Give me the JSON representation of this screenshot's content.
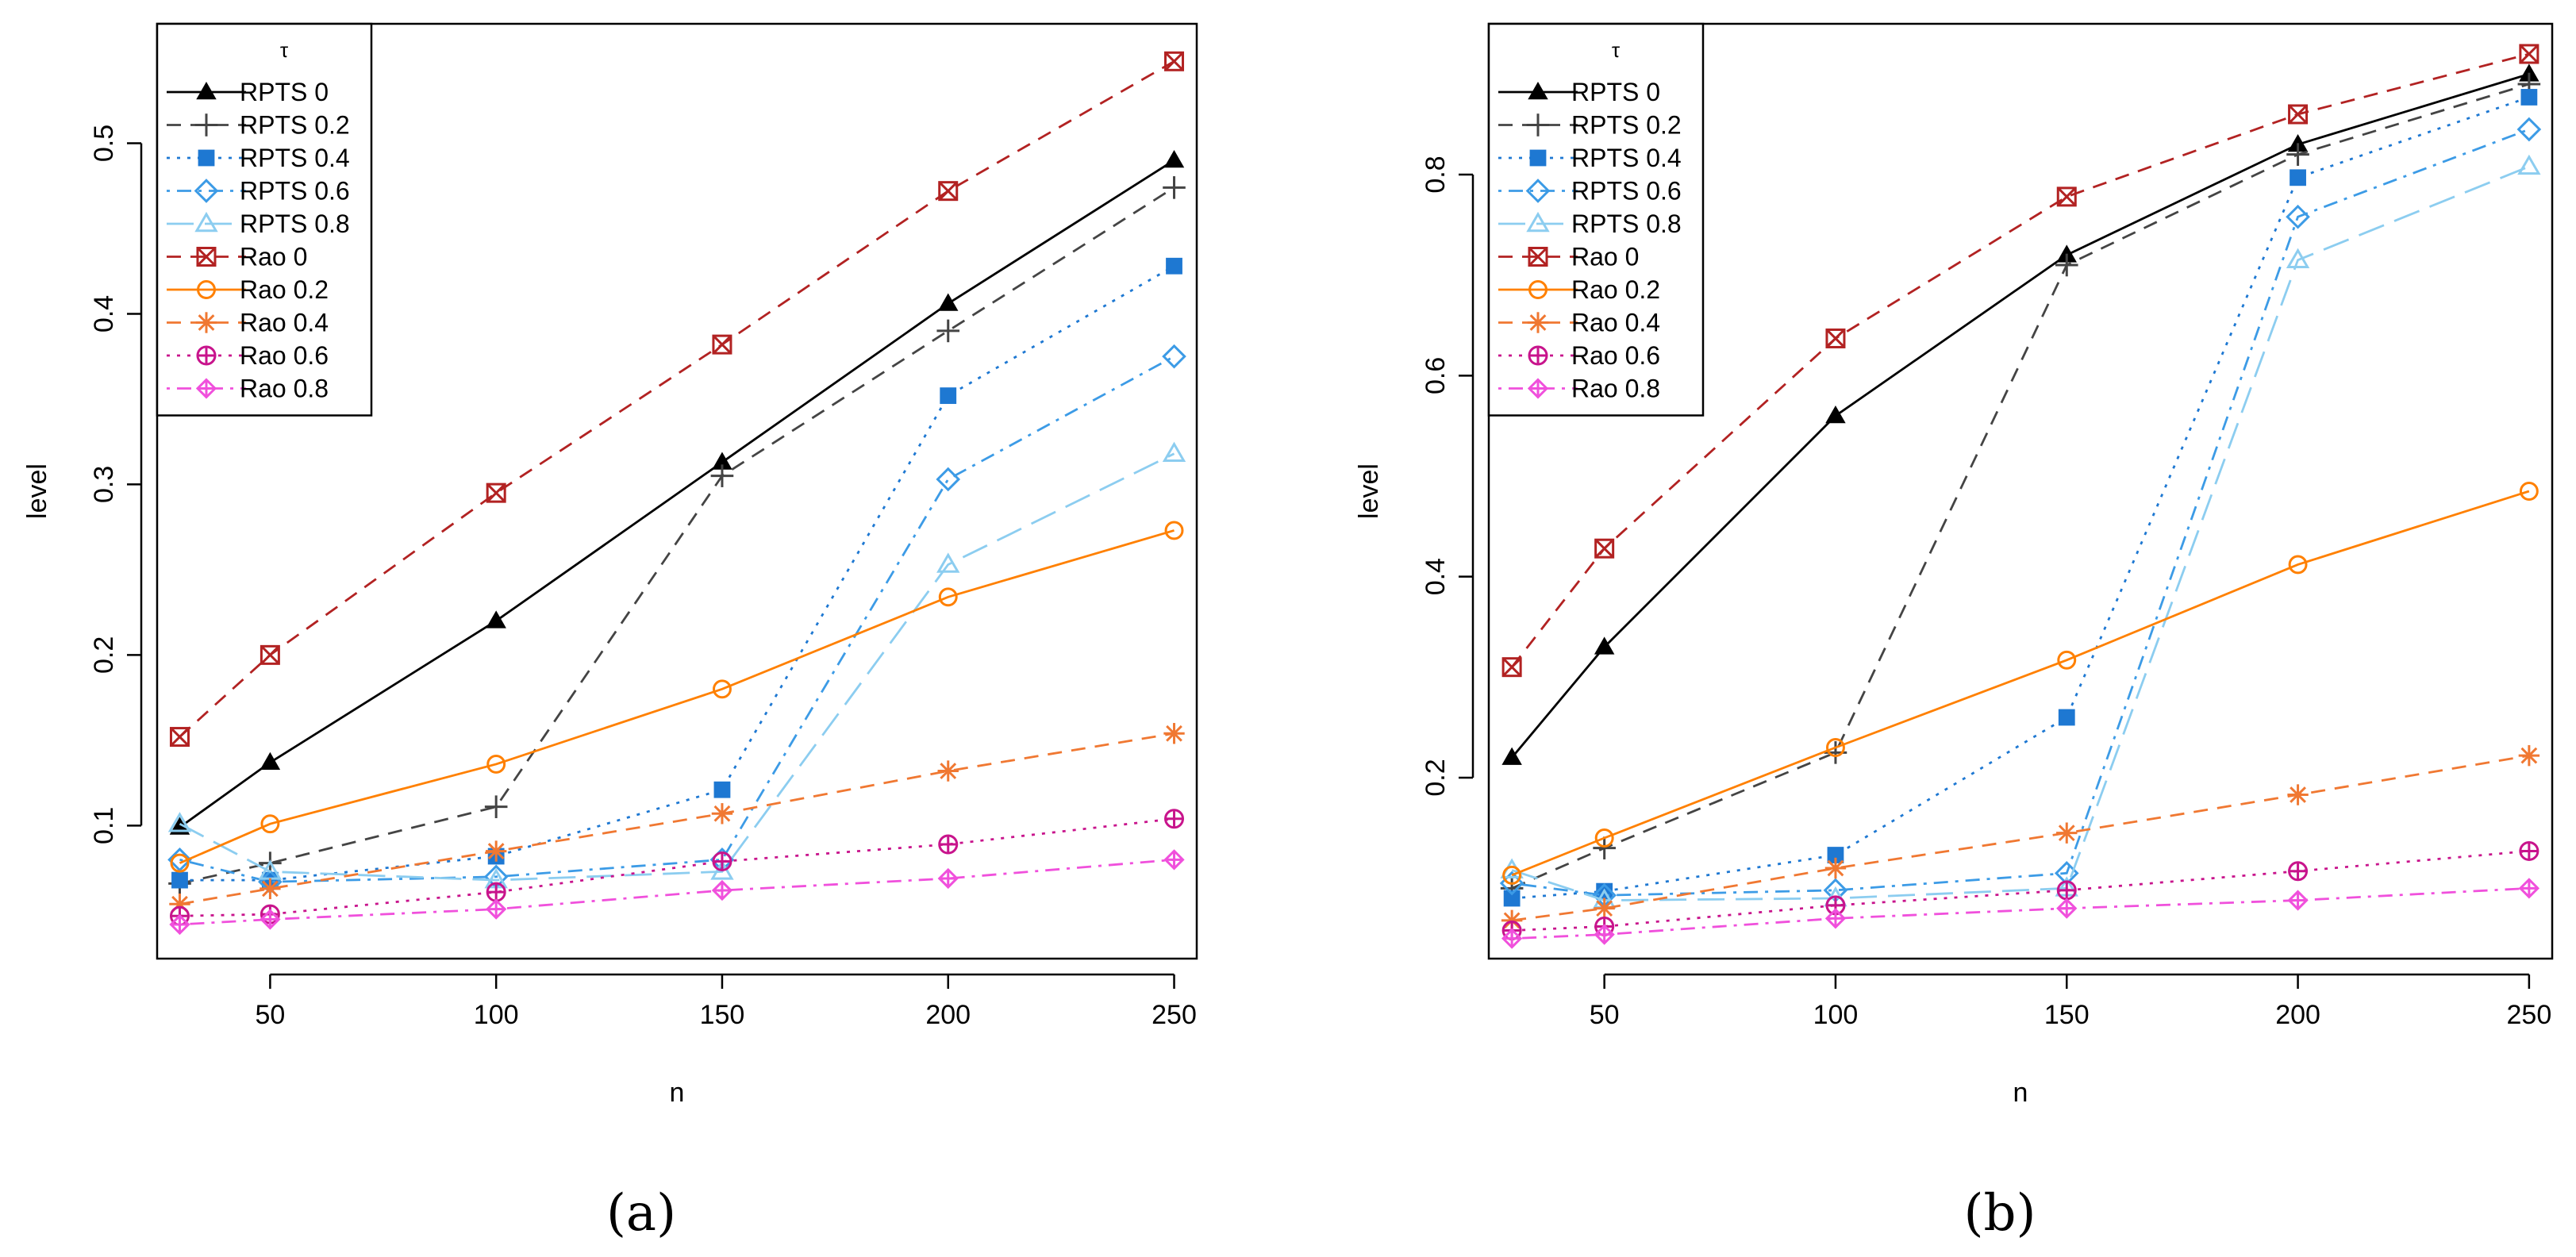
{
  "chart_data": [
    {
      "type": "line",
      "caption": "(a)",
      "xlabel": "n",
      "ylabel": "level",
      "x": [
        30,
        50,
        100,
        150,
        200,
        250
      ],
      "xticks": [
        50,
        100,
        150,
        200,
        250
      ],
      "xtick_labels": [
        "50",
        "100",
        "150",
        "200",
        "250"
      ],
      "xlim": [
        25,
        255
      ],
      "yticks": [
        0.1,
        0.2,
        0.3,
        0.4,
        0.5
      ],
      "ytick_labels": [
        "0.1",
        "0.2",
        "0.3",
        "0.4",
        "0.5"
      ],
      "ylim": [
        0.022,
        0.57
      ],
      "legend_title": "τ",
      "legend_position": "top-left",
      "series": [
        {
          "name": "RPTS 0",
          "color": "#000000",
          "dash": "solid",
          "marker": "triangle-filled",
          "values": [
            0.099,
            0.137,
            0.22,
            0.313,
            0.406,
            0.49
          ]
        },
        {
          "name": "RPTS 0.2",
          "color": "#444444",
          "dash": "dashed",
          "marker": "plus",
          "values": [
            0.066,
            0.078,
            0.111,
            0.305,
            0.39,
            0.474
          ]
        },
        {
          "name": "RPTS 0.4",
          "color": "#1e78d2",
          "dash": "dotted",
          "marker": "square-filled",
          "values": [
            0.068,
            0.068,
            0.082,
            0.121,
            0.352,
            0.428
          ]
        },
        {
          "name": "RPTS 0.6",
          "color": "#3c9be6",
          "dash": "dotdash",
          "marker": "diamond",
          "values": [
            0.08,
            0.067,
            0.07,
            0.08,
            0.303,
            0.375
          ]
        },
        {
          "name": "RPTS 0.8",
          "color": "#8ccdf0",
          "dash": "longdash",
          "marker": "triangle",
          "values": [
            0.101,
            0.073,
            0.068,
            0.073,
            0.253,
            0.318
          ]
        },
        {
          "name": "Rao 0",
          "color": "#b22222",
          "dash": "dashed",
          "marker": "square-x",
          "values": [
            0.152,
            0.2,
            0.295,
            0.382,
            0.472,
            0.548
          ]
        },
        {
          "name": "Rao 0.2",
          "color": "#ff8000",
          "dash": "solid",
          "marker": "circle",
          "values": [
            0.078,
            0.101,
            0.136,
            0.18,
            0.234,
            0.273
          ]
        },
        {
          "name": "Rao 0.4",
          "color": "#f07832",
          "dash": "dashed",
          "marker": "asterisk",
          "values": [
            0.054,
            0.063,
            0.085,
            0.107,
            0.132,
            0.154
          ]
        },
        {
          "name": "Rao 0.6",
          "color": "#c8148c",
          "dash": "dotted",
          "marker": "circle-plus",
          "values": [
            0.047,
            0.048,
            0.061,
            0.079,
            0.089,
            0.104
          ]
        },
        {
          "name": "Rao 0.8",
          "color": "#f050dc",
          "dash": "dotdash",
          "marker": "diamond-plus",
          "values": [
            0.042,
            0.045,
            0.051,
            0.062,
            0.069,
            0.08
          ]
        }
      ]
    },
    {
      "type": "line",
      "caption": "(b)",
      "xlabel": "n",
      "ylabel": "level",
      "x": [
        30,
        50,
        100,
        150,
        200,
        250
      ],
      "xticks": [
        50,
        100,
        150,
        200,
        250
      ],
      "xtick_labels": [
        "50",
        "100",
        "150",
        "200",
        "250"
      ],
      "xlim": [
        25,
        255
      ],
      "yticks": [
        0.2,
        0.4,
        0.6,
        0.8
      ],
      "ytick_labels": [
        "0.2",
        "0.4",
        "0.6",
        "0.8"
      ],
      "ylim": [
        0.02,
        0.95
      ],
      "legend_title": "τ",
      "legend_position": "top-left",
      "series": [
        {
          "name": "RPTS 0",
          "color": "#000000",
          "dash": "solid",
          "marker": "triangle-filled",
          "values": [
            0.22,
            0.33,
            0.56,
            0.72,
            0.83,
            0.9
          ]
        },
        {
          "name": "RPTS 0.2",
          "color": "#444444",
          "dash": "dashed",
          "marker": "plus",
          "values": [
            0.09,
            0.13,
            0.225,
            0.71,
            0.82,
            0.89
          ]
        },
        {
          "name": "RPTS 0.4",
          "color": "#1e78d2",
          "dash": "dotted",
          "marker": "square-filled",
          "values": [
            0.08,
            0.087,
            0.123,
            0.26,
            0.797,
            0.877
          ]
        },
        {
          "name": "RPTS 0.6",
          "color": "#3c9be6",
          "dash": "dotdash",
          "marker": "diamond",
          "values": [
            0.095,
            0.083,
            0.088,
            0.105,
            0.758,
            0.845
          ]
        },
        {
          "name": "RPTS 0.8",
          "color": "#8ccdf0",
          "dash": "longdash",
          "marker": "triangle",
          "values": [
            0.108,
            0.078,
            0.08,
            0.09,
            0.715,
            0.808
          ]
        },
        {
          "name": "Rao 0",
          "color": "#b22222",
          "dash": "dashed",
          "marker": "square-x",
          "values": [
            0.31,
            0.428,
            0.637,
            0.778,
            0.86,
            0.92
          ]
        },
        {
          "name": "Rao 0.2",
          "color": "#ff8000",
          "dash": "solid",
          "marker": "circle",
          "values": [
            0.103,
            0.14,
            0.23,
            0.317,
            0.412,
            0.485
          ]
        },
        {
          "name": "Rao 0.4",
          "color": "#f07832",
          "dash": "dashed",
          "marker": "asterisk",
          "values": [
            0.058,
            0.07,
            0.11,
            0.145,
            0.183,
            0.222
          ]
        },
        {
          "name": "Rao 0.6",
          "color": "#c8148c",
          "dash": "dotted",
          "marker": "circle-plus",
          "values": [
            0.048,
            0.052,
            0.073,
            0.088,
            0.107,
            0.127
          ]
        },
        {
          "name": "Rao 0.8",
          "color": "#f050dc",
          "dash": "dotdash",
          "marker": "diamond-plus",
          "values": [
            0.04,
            0.044,
            0.06,
            0.07,
            0.078,
            0.09
          ]
        }
      ]
    }
  ]
}
